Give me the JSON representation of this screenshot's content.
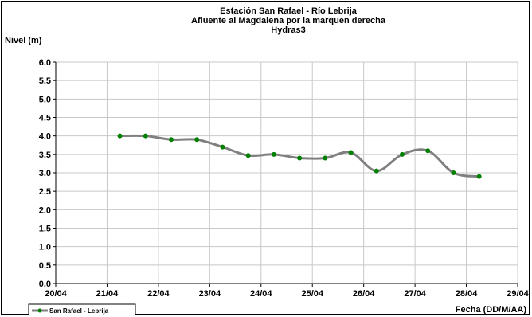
{
  "chart_data": {
    "type": "line",
    "title_lines": [
      "Estación San Rafael - Río Lebrija",
      "Afluente al Magdalena por la marquen derecha",
      "Hydras3"
    ],
    "ylabel": "Nivel (m)",
    "xlabel": "Fecha (DD/M/AA)",
    "ylim": [
      0,
      6
    ],
    "yticks": [
      "0.0",
      "0.5",
      "1.0",
      "1.5",
      "2.0",
      "2.5",
      "3.0",
      "3.5",
      "4.0",
      "4.5",
      "5.0",
      "5.5",
      "6.0"
    ],
    "xlim": [
      0,
      9
    ],
    "xticks": [
      "20/04",
      "21/04",
      "22/04",
      "23/04",
      "24/04",
      "25/04",
      "26/04",
      "27/04",
      "28/04",
      "29/04"
    ],
    "grid": true,
    "legend": "bottom-left",
    "series": [
      {
        "name": "San Rafael - Lebrija",
        "color": "#808080",
        "marker_color": "#008000",
        "x": [
          1.25,
          1.75,
          2.25,
          2.75,
          3.25,
          3.75,
          4.25,
          4.75,
          5.25,
          5.75,
          6.25,
          6.75,
          7.25,
          7.75,
          8.25
        ],
        "y": [
          4.0,
          4.0,
          3.9,
          3.9,
          3.7,
          3.47,
          3.5,
          3.4,
          3.4,
          3.55,
          3.05,
          3.5,
          3.6,
          3.0,
          2.9
        ]
      }
    ]
  }
}
